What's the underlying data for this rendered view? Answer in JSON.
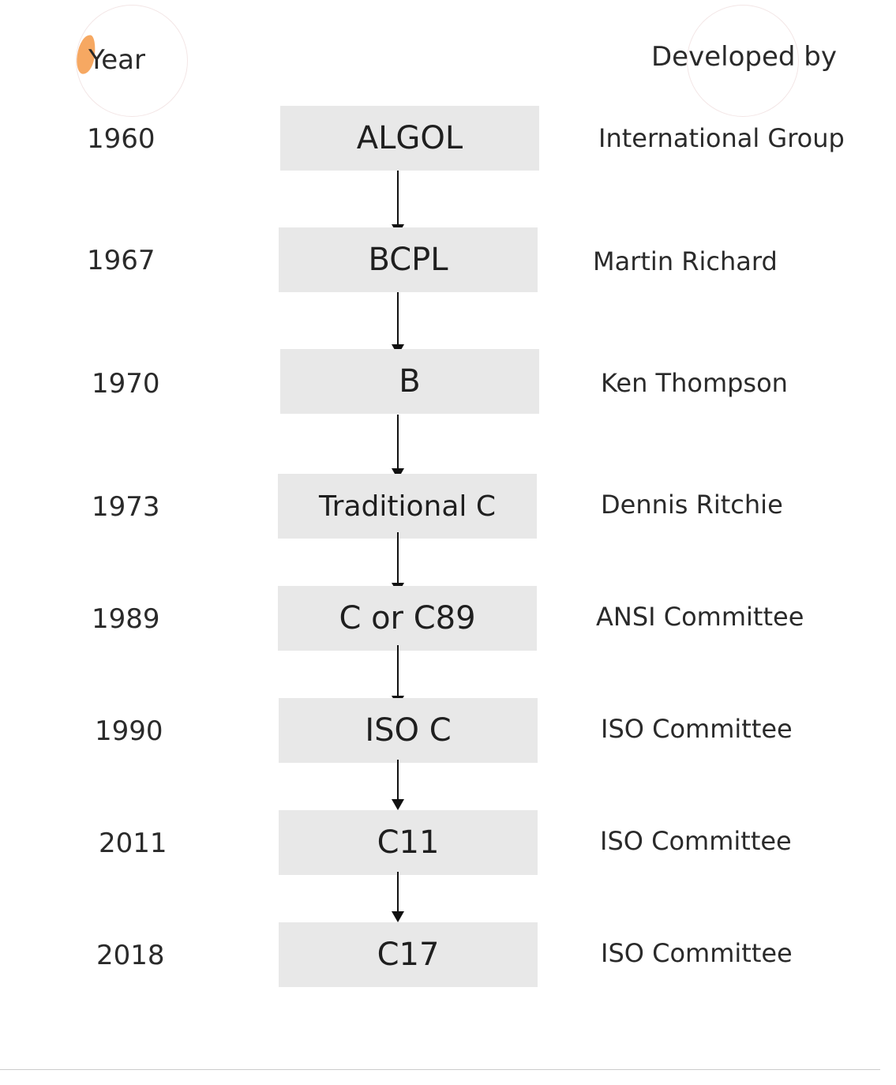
{
  "headers": {
    "year": "Year",
    "developed_by": "Developed by"
  },
  "rows": [
    {
      "year": "1960",
      "language": "ALGOL",
      "developer": "International Group"
    },
    {
      "year": "1967",
      "language": "BCPL",
      "developer": "Martin Richard"
    },
    {
      "year": "1970",
      "language": "B",
      "developer": "Ken Thompson"
    },
    {
      "year": "1973",
      "language": "Traditional C",
      "developer": "Dennis Ritchie"
    },
    {
      "year": "1989",
      "language": "C or C89",
      "developer": "ANSI Committee"
    },
    {
      "year": "1990",
      "language": "ISO C",
      "developer": "ISO Committee"
    },
    {
      "year": "2011",
      "language": "C11",
      "developer": "ISO Committee"
    },
    {
      "year": "2018",
      "language": "C17",
      "developer": "ISO Committee"
    }
  ],
  "colors": {
    "box_fill": "#e8e8e8",
    "arrow": "#111111",
    "accent_leaf": "#f5a35a"
  }
}
